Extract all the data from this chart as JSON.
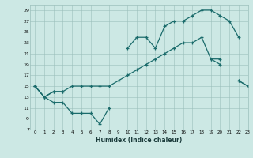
{
  "xlabel": "Humidex (Indice chaleur)",
  "background_color": "#cce8e4",
  "grid_color": "#aaaaaa",
  "line_color": "#1a6b6b",
  "x": [
    0,
    1,
    2,
    3,
    4,
    5,
    6,
    7,
    8,
    9,
    10,
    11,
    12,
    13,
    14,
    15,
    16,
    17,
    18,
    19,
    20,
    21,
    22,
    23
  ],
  "line_top": [
    15,
    13,
    14,
    14,
    null,
    null,
    null,
    null,
    null,
    null,
    22,
    24,
    24,
    22,
    26,
    27,
    27,
    28,
    29,
    29,
    28,
    27,
    24,
    null
  ],
  "line_mid": [
    15,
    13,
    14,
    14,
    15,
    15,
    15,
    15,
    15,
    16,
    17,
    18,
    19,
    20,
    21,
    22,
    23,
    23,
    24,
    20,
    20,
    null,
    16,
    15
  ],
  "line_bottom": [
    15,
    13,
    12,
    12,
    10,
    10,
    10,
    8,
    11,
    null,
    null,
    null,
    null,
    null,
    null,
    null,
    null,
    null,
    null,
    null,
    null,
    null,
    null,
    null
  ],
  "line_lower": [
    null,
    null,
    null,
    null,
    null,
    null,
    null,
    null,
    null,
    null,
    null,
    null,
    null,
    null,
    null,
    null,
    null,
    null,
    null,
    20,
    19,
    null,
    16,
    15
  ],
  "ylim": [
    7,
    30
  ],
  "yticks": [
    7,
    9,
    11,
    13,
    15,
    17,
    19,
    21,
    23,
    25,
    27,
    29
  ],
  "xlim": [
    -0.5,
    23
  ],
  "xticks": [
    0,
    1,
    2,
    3,
    4,
    5,
    6,
    7,
    8,
    9,
    10,
    11,
    12,
    13,
    14,
    15,
    16,
    17,
    18,
    19,
    20,
    21,
    22,
    23
  ]
}
